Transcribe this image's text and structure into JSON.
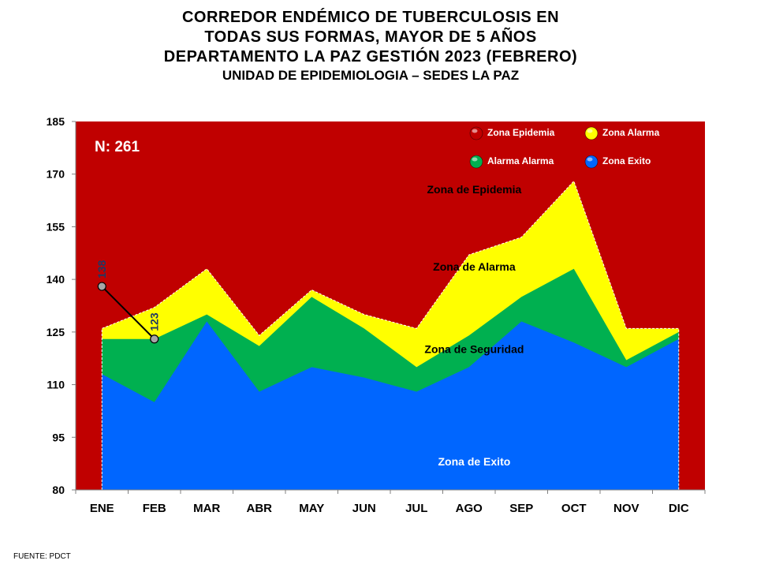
{
  "title": {
    "line1": "CORREDOR ENDÉMICO DE TUBERCULOSIS EN",
    "line2": "TODAS SUS FORMAS, MAYOR DE 5 AÑOS",
    "line3": "DEPARTAMENTO LA PAZ GESTIÓN 2023 (FEBRERO)",
    "line4": "UNIDAD DE EPIDEMIOLOGIA – SEDES LA PAZ"
  },
  "source": "FUENTE:   PDCT",
  "colors": {
    "epidemia": "#c00000",
    "alarma": "#ffff00",
    "seguridad": "#00b050",
    "exito": "#0066ff",
    "line": "#000000",
    "point": "#a6a6a6",
    "point_label": "#1f3864"
  },
  "chart_data": {
    "type": "area",
    "categories": [
      "ENE",
      "FEB",
      "MAR",
      "ABR",
      "MAY",
      "JUN",
      "JUL",
      "AGO",
      "SEP",
      "OCT",
      "NOV",
      "DIC"
    ],
    "ylim": [
      80,
      185
    ],
    "yticks": [
      80,
      95,
      110,
      125,
      140,
      155,
      170,
      185
    ],
    "n_label": "N: 261",
    "series": [
      {
        "name": "Zona Epidemia",
        "values": [
          185,
          185,
          185,
          185,
          185,
          185,
          185,
          185,
          185,
          185,
          185,
          185
        ]
      },
      {
        "name": "Zona  Alarma",
        "values": [
          126,
          132,
          143,
          124,
          137,
          130,
          126,
          147,
          152,
          168,
          126,
          126
        ]
      },
      {
        "name": "Alarma  Alarma",
        "values": [
          123,
          123,
          130,
          121,
          135,
          126,
          115,
          124,
          135,
          143,
          117,
          125
        ]
      },
      {
        "name": "Zona Exito",
        "values": [
          113,
          105,
          128,
          108,
          115,
          112,
          108,
          115,
          128,
          122,
          115,
          123
        ]
      }
    ],
    "observed": {
      "name": "2023",
      "values": [
        138,
        123
      ]
    },
    "zone_labels": [
      {
        "text": "Zona de Epidemia",
        "x": "AGO",
        "y": 164.5
      },
      {
        "text": "Zona de Alarma",
        "x": "AGO",
        "y": 142.5
      },
      {
        "text": "Zona de Seguridad",
        "x": "AGO",
        "y": 119
      },
      {
        "text": "Zona de Exito",
        "x": "AGO",
        "y": 87
      }
    ],
    "legend": [
      {
        "label": "Zona Epidemia",
        "zone": "epidemia"
      },
      {
        "label": "Zona  Alarma",
        "zone": "alarma"
      },
      {
        "label": "Alarma  Alarma",
        "zone": "seguridad"
      },
      {
        "label": "Zona Exito",
        "zone": "exito"
      }
    ],
    "legend_position": "top-right"
  }
}
